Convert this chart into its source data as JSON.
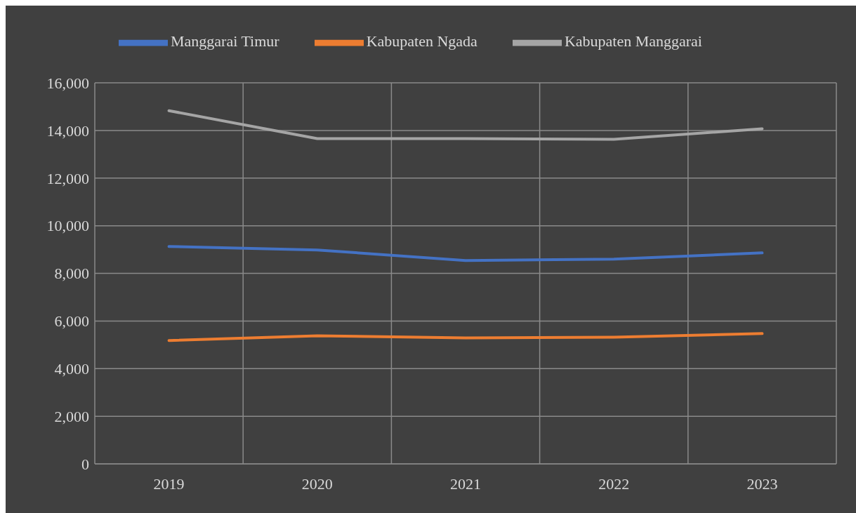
{
  "chart_data": {
    "type": "line",
    "categories": [
      "2019",
      "2020",
      "2021",
      "2022",
      "2023"
    ],
    "series": [
      {
        "name": "Manggarai Timur",
        "color": "#4472c4",
        "values": [
          9130,
          8980,
          8540,
          8600,
          8860
        ]
      },
      {
        "name": "Kabupaten Ngada",
        "color": "#ed7d31",
        "values": [
          5180,
          5380,
          5290,
          5320,
          5470
        ]
      },
      {
        "name": "Kabupaten Manggarai",
        "color": "#a5a5a5",
        "values": [
          14830,
          13660,
          13660,
          13630,
          14070
        ]
      }
    ],
    "ylim": [
      0,
      16000
    ],
    "yticks": [
      0,
      {
        "value": 2000,
        "label": "2,000"
      },
      {
        "value": 4000,
        "label": "4,000"
      },
      {
        "value": 6000,
        "label": "6,000"
      },
      {
        "value": 8000,
        "label": "8,000"
      },
      {
        "value": 10000,
        "label": "10,000"
      },
      {
        "value": 12000,
        "label": "12,000"
      },
      {
        "value": 14000,
        "label": "14,000"
      },
      {
        "value": 16000,
        "label": "16,000"
      }
    ],
    "grid": true,
    "legend": "top",
    "marker": "none"
  }
}
